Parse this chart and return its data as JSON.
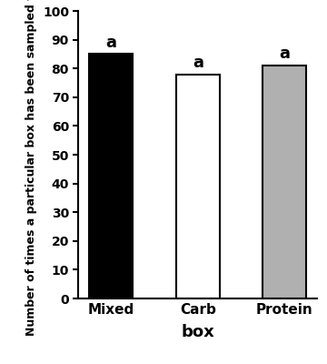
{
  "categories": [
    "Mixed",
    "Carb",
    "Protein"
  ],
  "values": [
    85,
    78,
    81
  ],
  "bar_colors": [
    "#000000",
    "#ffffff",
    "#b0b0b0"
  ],
  "bar_edgecolors": [
    "#000000",
    "#000000",
    "#000000"
  ],
  "bar_labels": [
    "a",
    "a",
    "a"
  ],
  "xlabel": "box",
  "ylabel": "Number of times a particular box has been sampled first",
  "ylim": [
    0,
    100
  ],
  "yticks": [
    0,
    10,
    20,
    30,
    40,
    50,
    60,
    70,
    80,
    90,
    100
  ],
  "bar_width": 0.5,
  "label_fontsize": 11,
  "tick_fontsize": 10,
  "annotation_fontsize": 13,
  "xlabel_fontsize": 13,
  "ylabel_fontsize": 9.0,
  "background_color": "#ffffff",
  "edge_linewidth": 1.5
}
